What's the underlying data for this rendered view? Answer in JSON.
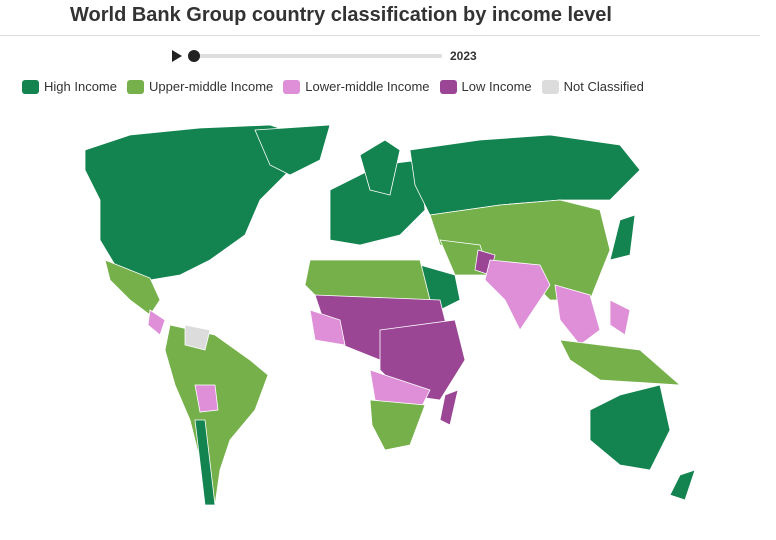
{
  "title": "World Bank Group country classification by income level",
  "player": {
    "year": "2023"
  },
  "legend": [
    {
      "label": "High Income",
      "color": "#138450"
    },
    {
      "label": "Upper-middle Income",
      "color": "#75b04a"
    },
    {
      "label": "Lower-middle Income",
      "color": "#de8fd8"
    },
    {
      "label": "Low Income",
      "color": "#9b4595"
    },
    {
      "label": "Not Classified",
      "color": "#dcdcdc"
    }
  ]
}
